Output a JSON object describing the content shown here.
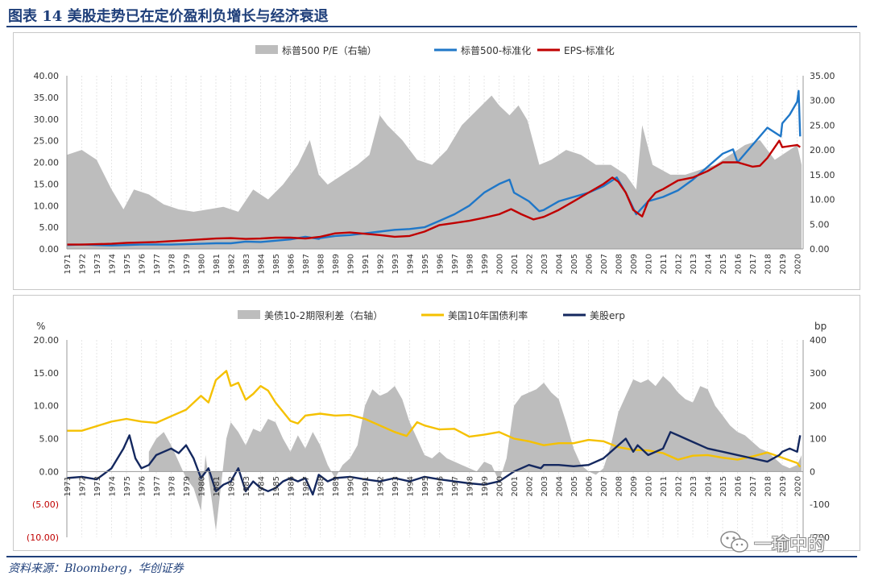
{
  "header": {
    "title": "图表 14   美股走势已在定价盈利负增长与经济衰退"
  },
  "footer": {
    "source": "资料来源：Bloomberg，华创证券",
    "watermark": "一瑜中的"
  },
  "colors": {
    "gray": "#bdbdbd",
    "blue": "#1f77c8",
    "red": "#c00000",
    "yellow": "#f5c100",
    "navy": "#14285f",
    "title": "#1f3f7a"
  },
  "chart_data": [
    {
      "type": "line",
      "x_ticks": [
        "1971",
        "1972",
        "1973",
        "1974",
        "1975",
        "1976",
        "1977",
        "1978",
        "1979",
        "1980",
        "1981",
        "1982",
        "1983",
        "1984",
        "1985",
        "1986",
        "1987",
        "1988",
        "1989",
        "1990",
        "1991",
        "1992",
        "1993",
        "1994",
        "1995",
        "1996",
        "1997",
        "1998",
        "1999",
        "2000",
        "2001",
        "2002",
        "2003",
        "2004",
        "2005",
        "2006",
        "2007",
        "2008",
        "2009",
        "2010",
        "2011",
        "2012",
        "2013",
        "2014",
        "2015",
        "2016",
        "2017",
        "2018",
        "2019",
        "2020"
      ],
      "y_left": {
        "ylim": [
          0,
          40
        ],
        "ticks": [
          "0.00",
          "5.00",
          "10.00",
          "15.00",
          "20.00",
          "25.00",
          "30.00",
          "35.00",
          "40.00"
        ]
      },
      "y_right": {
        "ylim": [
          0,
          35
        ],
        "ticks": [
          "0.00",
          "5.00",
          "10.00",
          "15.00",
          "20.00",
          "25.00",
          "30.00",
          "35.00"
        ]
      },
      "series": [
        {
          "name": "标普500 P/E（右轴）",
          "kind": "area",
          "axis": "right",
          "color": "#bdbdbd",
          "x": [
            1971,
            1972,
            1973,
            1974,
            1974.8,
            1975.5,
            1976.5,
            1977.5,
            1978.5,
            1979.5,
            1980.5,
            1981.5,
            1982.5,
            1983.5,
            1984.5,
            1985.5,
            1986.5,
            1987.3,
            1987.9,
            1988.5,
            1989.5,
            1990.5,
            1991.3,
            1992.0,
            1992.5,
            1993.5,
            1994.5,
            1995.5,
            1996.5,
            1997.5,
            1998.5,
            1999.5,
            2000.0,
            2000.7,
            2001.3,
            2001.9,
            2002.7,
            2003.5,
            2004.5,
            2005.5,
            2006.5,
            2007.5,
            2008.5,
            2009.2,
            2009.6,
            2010.3,
            2011.5,
            2012.5,
            2013.5,
            2014.5,
            2015.5,
            2016.5,
            2017.5,
            2018.5,
            2019.5,
            2020.0,
            2020.3
          ],
          "y": [
            19,
            20,
            18,
            12,
            8,
            12,
            11,
            9,
            8,
            7.5,
            8,
            8.5,
            7.5,
            12,
            10,
            13,
            17,
            22,
            15,
            13,
            15,
            17,
            19,
            27,
            25,
            22,
            18,
            17,
            20,
            25,
            28,
            31,
            29,
            27,
            29,
            26,
            17,
            18,
            20,
            19,
            17,
            17,
            15,
            12,
            25,
            17,
            15,
            15,
            16,
            17,
            19,
            21,
            22,
            18,
            20,
            21,
            17
          ]
        },
        {
          "name": "标普500-标准化",
          "axis": "left",
          "color": "#1f77c8",
          "x": [
            1971,
            1972,
            1973,
            1974,
            1975,
            1976,
            1977,
            1978,
            1979,
            1980,
            1981,
            1982,
            1983,
            1984,
            1985,
            1986,
            1987,
            1987.9,
            1988,
            1989,
            1990,
            1991,
            1992,
            1993,
            1994,
            1995,
            1996,
            1997,
            1998,
            1999,
            2000,
            2000.7,
            2001,
            2002,
            2002.7,
            2003,
            2004,
            2005,
            2006,
            2007,
            2007.9,
            2008.5,
            2009.2,
            2009.6,
            2010,
            2011,
            2012,
            2013,
            2014,
            2015,
            2015.7,
            2016,
            2017,
            2018,
            2018.9,
            2019,
            2019.5,
            2020.0,
            2020.1,
            2020.2
          ],
          "y": [
            0.9,
            1.0,
            0.9,
            0.8,
            0.9,
            1.0,
            1.0,
            1.0,
            1.1,
            1.2,
            1.3,
            1.3,
            1.7,
            1.6,
            1.9,
            2.2,
            2.8,
            2.3,
            2.5,
            3.0,
            3.2,
            3.6,
            4.0,
            4.4,
            4.6,
            5.0,
            6.5,
            8.0,
            10.0,
            13.0,
            15.0,
            16.0,
            13.0,
            11.0,
            8.7,
            9.0,
            11.0,
            12.0,
            13.0,
            14.5,
            16.5,
            13.0,
            8.0,
            9.5,
            11.0,
            12.0,
            13.5,
            16.0,
            19.0,
            22.0,
            23.0,
            20.0,
            24.0,
            28.0,
            26.0,
            29.0,
            31.0,
            34.0,
            36.5,
            26.0
          ]
        },
        {
          "name": "EPS-标准化",
          "axis": "left",
          "color": "#c00000",
          "x": [
            1971,
            1972,
            1973,
            1974,
            1975,
            1976,
            1977,
            1978,
            1979,
            1980,
            1981,
            1982,
            1983,
            1984,
            1985,
            1986,
            1987,
            1988,
            1989,
            1990,
            1991,
            1992,
            1993,
            1994,
            1995,
            1996,
            1997,
            1998,
            1999,
            2000,
            2000.8,
            2001.5,
            2002.3,
            2003,
            2004,
            2005,
            2006,
            2007,
            2007.6,
            2008,
            2008.5,
            2009,
            2009.6,
            2010,
            2010.5,
            2011,
            2012,
            2013,
            2014,
            2015,
            2016,
            2017,
            2017.5,
            2018,
            2018.8,
            2019,
            2020,
            2020.2
          ],
          "y": [
            1.0,
            1.0,
            1.1,
            1.2,
            1.4,
            1.5,
            1.6,
            1.8,
            2.0,
            2.2,
            2.4,
            2.5,
            2.3,
            2.4,
            2.6,
            2.6,
            2.4,
            2.8,
            3.6,
            3.8,
            3.5,
            3.2,
            2.8,
            3.0,
            4.0,
            5.5,
            6.0,
            6.5,
            7.2,
            8.0,
            9.2,
            8.0,
            6.8,
            7.4,
            9.0,
            11.0,
            13.0,
            15.0,
            16.5,
            15.5,
            13.0,
            9.0,
            7.5,
            11.0,
            13.0,
            13.8,
            15.8,
            16.5,
            18.0,
            20.0,
            20.0,
            19.0,
            19.2,
            21.0,
            25.0,
            23.5,
            24.0,
            23.5
          ]
        }
      ]
    },
    {
      "type": "line",
      "x_ticks": [
        "1971",
        "1972",
        "1973",
        "1974",
        "1975",
        "1976",
        "1977",
        "1978",
        "1979",
        "1980",
        "1981",
        "1982",
        "1983",
        "1984",
        "1985",
        "1986",
        "1987",
        "1988",
        "1989",
        "1990",
        "1991",
        "1992",
        "1993",
        "1994",
        "1995",
        "1996",
        "1997",
        "1998",
        "1999",
        "2000",
        "2001",
        "2002",
        "2003",
        "2004",
        "2005",
        "2006",
        "2007",
        "2008",
        "2009",
        "2010",
        "2011",
        "2012",
        "2013",
        "2014",
        "2015",
        "2016",
        "2017",
        "2018",
        "2019",
        "2020"
      ],
      "y_left": {
        "unit": "%",
        "ylim": [
          -10,
          20
        ],
        "ticks": [
          "(10.00)",
          "(5.00)",
          "0.00",
          "5.00",
          "10.00",
          "15.00",
          "20.00"
        ]
      },
      "y_right": {
        "unit": "bp",
        "ylim": [
          -200,
          400
        ],
        "ticks": [
          "-200",
          "-100",
          "0",
          "100",
          "200",
          "300",
          "400"
        ]
      },
      "series": [
        {
          "name": "美债10-2期限利差（右轴）",
          "kind": "area",
          "axis": "right",
          "color": "#bdbdbd",
          "x": [
            1976.5,
            1977.0,
            1977.5,
            1978.0,
            1978.5,
            1979.0,
            1979.5,
            1980.0,
            1980.3,
            1980.7,
            1981.0,
            1981.3,
            1981.7,
            1982.0,
            1982.5,
            1983.0,
            1983.5,
            1984.0,
            1984.5,
            1985.0,
            1985.5,
            1986.0,
            1986.5,
            1987.0,
            1987.5,
            1988.0,
            1988.5,
            1989.0,
            1989.5,
            1990.0,
            1990.5,
            1991.0,
            1991.5,
            1992.0,
            1992.5,
            1993.0,
            1993.5,
            1994.0,
            1994.5,
            1995.0,
            1995.5,
            1996.0,
            1996.5,
            1997.0,
            1997.5,
            1998.0,
            1998.5,
            1999.0,
            1999.5,
            2000.0,
            2000.5,
            2001.0,
            2001.5,
            2002.0,
            2002.5,
            2003.0,
            2003.5,
            2004.0,
            2004.5,
            2005.0,
            2005.5,
            2006.0,
            2006.5,
            2007.0,
            2007.5,
            2008.0,
            2008.5,
            2009.0,
            2009.5,
            2010.0,
            2010.5,
            2011.0,
            2011.5,
            2012.0,
            2012.5,
            2013.0,
            2013.5,
            2014.0,
            2014.5,
            2015.0,
            2015.5,
            2016.0,
            2016.5,
            2017.0,
            2017.5,
            2018.0,
            2018.5,
            2019.0,
            2019.5,
            2020.0,
            2020.3
          ],
          "y": [
            60,
            100,
            120,
            80,
            30,
            -20,
            -50,
            -120,
            50,
            -80,
            -180,
            -60,
            100,
            150,
            120,
            80,
            130,
            120,
            160,
            150,
            100,
            60,
            110,
            70,
            120,
            80,
            20,
            -20,
            20,
            40,
            80,
            200,
            250,
            230,
            240,
            260,
            220,
            150,
            100,
            50,
            40,
            60,
            40,
            30,
            20,
            10,
            0,
            30,
            20,
            -30,
            40,
            200,
            230,
            240,
            250,
            270,
            240,
            220,
            150,
            70,
            20,
            0,
            -10,
            10,
            80,
            180,
            230,
            280,
            270,
            280,
            260,
            290,
            270,
            240,
            220,
            210,
            260,
            250,
            200,
            170,
            140,
            120,
            110,
            90,
            70,
            60,
            40,
            20,
            10,
            20,
            50
          ]
        },
        {
          "name": "美国10年国债利率",
          "axis": "left",
          "color": "#f5c100",
          "x": [
            1971,
            1972,
            1973,
            1974,
            1975,
            1976,
            1977,
            1978,
            1979,
            1980,
            1980.5,
            1981,
            1981.7,
            1982,
            1982.5,
            1983,
            1983.5,
            1984,
            1984.5,
            1985,
            1986,
            1986.5,
            1987,
            1988,
            1989,
            1990,
            1991,
            1992,
            1993,
            1993.8,
            1994.5,
            1995,
            1996,
            1997,
            1998,
            1999,
            2000,
            2001,
            2002,
            2003,
            2004,
            2005,
            2006,
            2007,
            2008,
            2009,
            2010,
            2011,
            2012,
            2013,
            2014,
            2015,
            2016,
            2017,
            2018,
            2019,
            2020,
            2020.2
          ],
          "y": [
            6.2,
            6.2,
            6.9,
            7.6,
            8.0,
            7.6,
            7.4,
            8.4,
            9.4,
            11.5,
            10.5,
            13.9,
            15.3,
            13.0,
            13.5,
            10.9,
            11.8,
            13.0,
            12.3,
            10.5,
            7.7,
            7.3,
            8.5,
            8.8,
            8.5,
            8.6,
            8.0,
            7.0,
            6.0,
            5.4,
            7.5,
            7.0,
            6.4,
            6.5,
            5.3,
            5.6,
            6.0,
            5.0,
            4.6,
            4.0,
            4.3,
            4.3,
            4.8,
            4.6,
            3.7,
            3.3,
            3.2,
            2.8,
            1.8,
            2.4,
            2.5,
            2.1,
            1.8,
            2.3,
            2.9,
            2.1,
            1.3,
            0.7
          ]
        },
        {
          "name": "美股erp",
          "axis": "left",
          "color": "#14285f",
          "x": [
            1971,
            1972,
            1973,
            1974,
            1974.8,
            1975.2,
            1975.6,
            1976,
            1976.5,
            1977,
            1977.5,
            1978,
            1978.5,
            1979,
            1979.5,
            1980,
            1980.5,
            1981,
            1981.5,
            1982,
            1982.5,
            1983,
            1983.5,
            1984,
            1984.5,
            1985,
            1985.5,
            1986,
            1986.5,
            1987,
            1987.5,
            1987.9,
            1988.5,
            1989,
            1990,
            1991,
            1992,
            1993,
            1994,
            1995,
            1996,
            1997,
            1998,
            1999,
            2000,
            2001,
            2002,
            2002.8,
            2003,
            2004,
            2005,
            2006,
            2007,
            2008,
            2008.5,
            2009,
            2009.3,
            2010,
            2011,
            2011.5,
            2012,
            2013,
            2014,
            2015,
            2016,
            2017,
            2018,
            2018.8,
            2019,
            2019.5,
            2020,
            2020.2
          ],
          "y": [
            -1.0,
            -0.8,
            -1.2,
            0.5,
            3.5,
            5.5,
            2.0,
            0.5,
            1.0,
            2.5,
            3.0,
            3.5,
            2.8,
            4.0,
            2.0,
            -1.0,
            0.5,
            -3.0,
            -2.0,
            -1.5,
            0.5,
            -3.0,
            -1.5,
            -2.5,
            -3.0,
            -2.5,
            -1.5,
            -1.0,
            -1.5,
            -1.0,
            -3.5,
            -0.5,
            -1.5,
            -1.0,
            -0.8,
            -1.2,
            -1.5,
            -1.0,
            -1.5,
            -0.8,
            -1.2,
            -1.5,
            -1.8,
            -2.0,
            -1.5,
            0.0,
            1.0,
            0.5,
            1.0,
            1.0,
            0.8,
            1.0,
            2.0,
            4.0,
            5.0,
            3.0,
            4.0,
            2.5,
            3.5,
            6.0,
            5.5,
            4.5,
            3.5,
            3.0,
            2.5,
            2.0,
            1.5,
            2.5,
            3.0,
            3.5,
            3.0,
            5.5
          ]
        }
      ]
    }
  ]
}
